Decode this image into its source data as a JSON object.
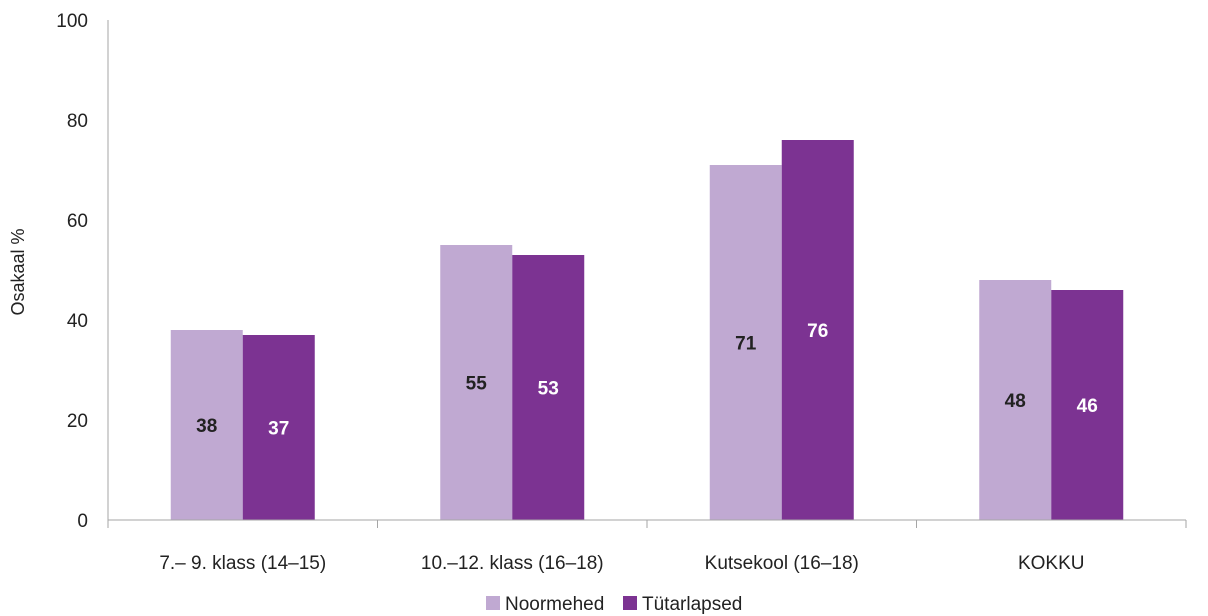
{
  "chart_data": {
    "type": "bar",
    "title": "",
    "xlabel": "",
    "ylabel": "Osakaal %",
    "ylim": [
      0,
      100
    ],
    "yticks": [
      0,
      20,
      40,
      60,
      80,
      100
    ],
    "grid": false,
    "legend_position": "bottom",
    "categories": [
      "7.– 9. klass (14–15)",
      "10.–12. klass (16–18)",
      "Kutsekool (16–18)",
      "KOKKU"
    ],
    "series": [
      {
        "name": "Noormehed",
        "values": [
          38,
          55,
          71,
          48
        ],
        "color": "#c0a9d2",
        "label_color": "#222222"
      },
      {
        "name": "Tütarlapsed",
        "values": [
          37,
          53,
          76,
          46
        ],
        "color": "#7c3392",
        "label_color": "#ffffff"
      }
    ],
    "axis_color": "#a6a6a6"
  }
}
